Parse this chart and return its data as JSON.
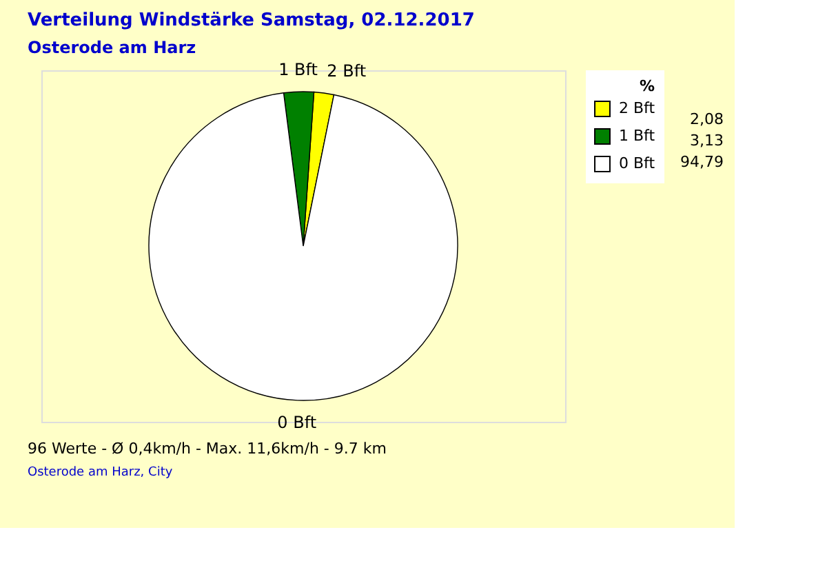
{
  "chart_data": {
    "type": "pie",
    "title": "Verteilung Windstärke  Samstag, 02.12.2017",
    "subtitle": "Osterode am Harz",
    "categories": [
      "2 Bft",
      "1 Bft",
      "0 Bft"
    ],
    "values": [
      2.08,
      3.13,
      94.79
    ],
    "value_labels": [
      "2,08",
      "3,13",
      "94,79"
    ],
    "colors": [
      "#ffff00",
      "#008000",
      "#ffffff"
    ],
    "legend": "top right",
    "legend_title": "%",
    "annotations": [
      "96 Werte  -  Ø 0,4km/h  -  Max. 11,6km/h  -  9.7 km",
      "Osterode am Harz, City"
    ]
  }
}
